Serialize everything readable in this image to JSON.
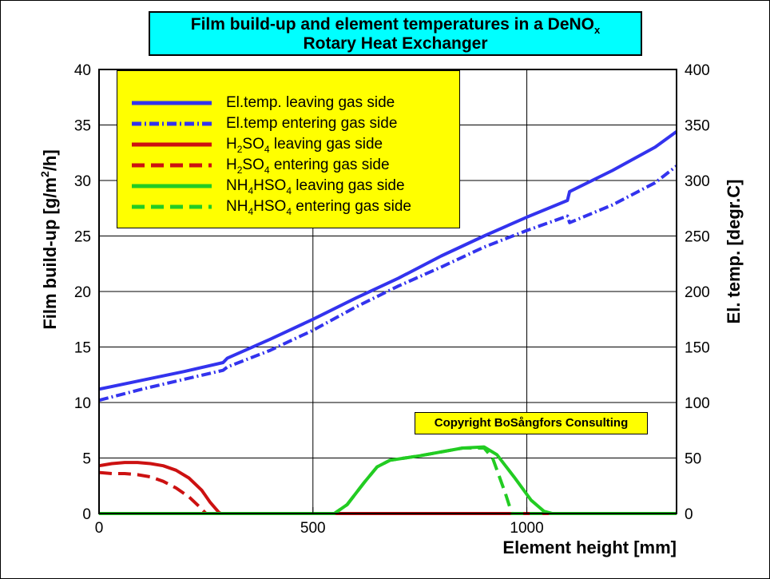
{
  "title": {
    "line1_main": "Film build-up and element temperatures in a DeNO",
    "line1_sub": "x",
    "line2": "Rotary Heat Exchanger"
  },
  "colors": {
    "title_bg": "#00ffff",
    "legend_bg": "#ffff00",
    "el_temp": "#3333ee",
    "h2so4": "#cc1111",
    "nh4hso4": "#22cc22"
  },
  "legend": [
    {
      "parts": [
        [
          "El.temp. leaving gas side",
          ""
        ]
      ],
      "color": "#3333ee",
      "dash": "solid"
    },
    {
      "parts": [
        [
          "El.temp entering gas side",
          ""
        ]
      ],
      "color": "#3333ee",
      "dash": "dashdot"
    },
    {
      "parts": [
        [
          "H",
          "2"
        ],
        [
          "SO",
          "4"
        ],
        [
          " leaving gas side",
          ""
        ]
      ],
      "color": "#cc1111",
      "dash": "solid"
    },
    {
      "parts": [
        [
          "H",
          "2"
        ],
        [
          "SO",
          "4"
        ],
        [
          " entering gas side",
          ""
        ]
      ],
      "color": "#cc1111",
      "dash": "dashed"
    },
    {
      "parts": [
        [
          "NH",
          "4"
        ],
        [
          "HSO",
          "4"
        ],
        [
          " leaving gas side",
          ""
        ]
      ],
      "color": "#22cc22",
      "dash": "solid"
    },
    {
      "parts": [
        [
          "NH",
          "4"
        ],
        [
          "HSO",
          "4"
        ],
        [
          " entering gas side",
          ""
        ]
      ],
      "color": "#22cc22",
      "dash": "dashed"
    }
  ],
  "copyright": "Copyright BoSångfors Consulting",
  "chart_data": {
    "type": "line",
    "xlabel": "Element height [mm]",
    "ylabel_left": "Film build-up [g/m²/h]",
    "ylabel_left_parts": [
      "Film build-up [g/m",
      "2",
      "/h]"
    ],
    "ylabel_right": "El. temp. [degr.C]",
    "xlim": [
      0,
      1350
    ],
    "ylim_left": [
      0,
      40
    ],
    "ylim_right": [
      0,
      400
    ],
    "xticks": [
      0,
      500,
      1000
    ],
    "yticks_left": [
      0,
      5,
      10,
      15,
      20,
      25,
      30,
      35,
      40
    ],
    "yticks_right": [
      0,
      50,
      100,
      150,
      200,
      250,
      300,
      350,
      400
    ],
    "grid": true,
    "legend_position": "top-left",
    "series": [
      {
        "name": "El.temp. leaving gas side",
        "axis": "right",
        "color": "#3333ee",
        "dash": "solid",
        "x": [
          0,
          100,
          200,
          290,
          300,
          400,
          500,
          600,
          700,
          800,
          900,
          1000,
          1095,
          1100,
          1200,
          1300,
          1350
        ],
        "y": [
          112,
          120,
          128,
          136,
          140,
          157,
          175,
          194,
          212,
          232,
          250,
          267,
          282,
          290,
          309,
          330,
          344
        ]
      },
      {
        "name": "El.temp entering gas side",
        "axis": "right",
        "color": "#3333ee",
        "dash": "dashdot",
        "x": [
          0,
          100,
          200,
          290,
          300,
          400,
          500,
          600,
          700,
          800,
          900,
          1000,
          1095,
          1100,
          1200,
          1300,
          1350
        ],
        "y": [
          102,
          112,
          121,
          129,
          132,
          147,
          165,
          186,
          205,
          222,
          240,
          255,
          268,
          262,
          278,
          298,
          313
        ]
      },
      {
        "name": "H2SO4 leaving gas side",
        "axis": "left",
        "color": "#cc1111",
        "dash": "solid",
        "x": [
          0,
          30,
          60,
          90,
          120,
          150,
          180,
          210,
          240,
          260,
          280,
          285,
          1350
        ],
        "y": [
          4.3,
          4.5,
          4.6,
          4.6,
          4.5,
          4.3,
          3.9,
          3.2,
          2.1,
          1.0,
          0.1,
          0,
          0
        ]
      },
      {
        "name": "H2SO4 entering gas side",
        "axis": "left",
        "color": "#cc1111",
        "dash": "dashed",
        "x": [
          0,
          30,
          60,
          90,
          120,
          150,
          180,
          210,
          235,
          250,
          1350
        ],
        "y": [
          3.7,
          3.6,
          3.6,
          3.5,
          3.3,
          2.9,
          2.3,
          1.5,
          0.6,
          0,
          0
        ]
      },
      {
        "name": "NH4HSO4 leaving gas side",
        "axis": "left",
        "color": "#22cc22",
        "dash": "solid",
        "x": [
          0,
          550,
          580,
          620,
          650,
          680,
          750,
          850,
          900,
          930,
          970,
          1010,
          1040,
          1060,
          1350
        ],
        "y": [
          0,
          0,
          0.8,
          2.8,
          4.2,
          4.8,
          5.2,
          5.9,
          6.0,
          5.3,
          3.3,
          1.2,
          0.2,
          0,
          0
        ]
      },
      {
        "name": "NH4HSO4 entering gas side",
        "axis": "left",
        "color": "#22cc22",
        "dash": "dashed",
        "x": [
          0,
          550,
          580,
          620,
          650,
          680,
          750,
          850,
          900,
          920,
          950,
          965,
          1350
        ],
        "y": [
          0,
          0,
          0.8,
          2.8,
          4.2,
          4.8,
          5.2,
          5.9,
          5.9,
          5.0,
          1.8,
          0,
          0
        ]
      }
    ]
  }
}
